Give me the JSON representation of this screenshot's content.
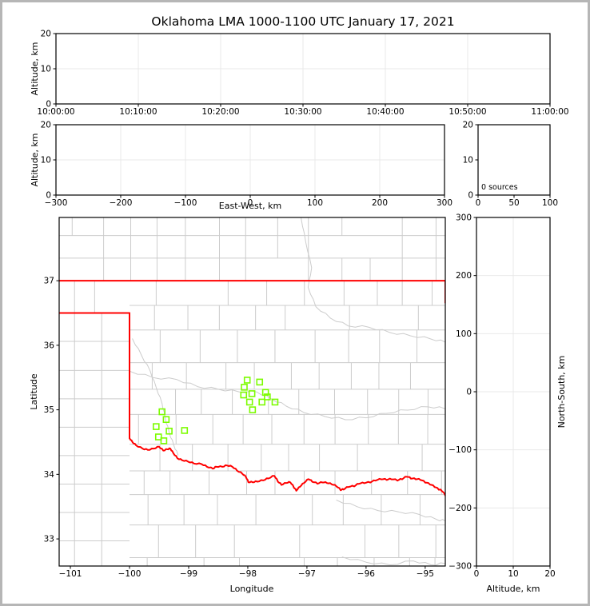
{
  "title": "Oklahoma LMA 1000-1100 UTC January 17, 2021",
  "labels": {
    "alt_km": "Altitude, km",
    "east_west": "East-West, km",
    "longitude": "Longitude",
    "latitude": "Latitude",
    "north_south": "North-South, km"
  },
  "colors": {
    "state_border": "#ff0000",
    "station_marker": "#7cfc00",
    "county_line": "#cccccc",
    "river_line": "#cccccc",
    "grid_line": "#e9e9e9",
    "axis_frame": "#000000",
    "page_border": "#b6b6b6",
    "background": "#ffffff",
    "text": "#000000"
  },
  "chart_data": [
    {
      "id": "altitude_vs_time",
      "type": "scatter",
      "ylabel": "Altitude, km",
      "xlim": [
        0,
        3600
      ],
      "ylim": [
        0,
        20
      ],
      "x_tick_values": [
        0,
        600,
        1200,
        1800,
        2400,
        3000,
        3600
      ],
      "x_tick_labels": [
        "10:00:00",
        "10:10:00",
        "10:20:00",
        "10:30:00",
        "10:40:00",
        "10:50:00",
        "11:00:00"
      ],
      "y_tick_values": [
        0,
        10,
        20
      ],
      "y_tick_labels": [
        "0",
        "10",
        "20"
      ],
      "grid_x": [
        600,
        1200,
        1800,
        2400,
        3000
      ],
      "grid_y": [
        10
      ],
      "points": []
    },
    {
      "id": "altitude_vs_east_west",
      "type": "scatter",
      "xlabel": "East-West, km",
      "ylabel": "Altitude, km",
      "xlim": [
        -300,
        300
      ],
      "ylim": [
        0,
        20
      ],
      "x_tick_values": [
        -300,
        -200,
        -100,
        0,
        100,
        200,
        300
      ],
      "x_tick_labels": [
        "−300",
        "−200",
        "−100",
        "0",
        "100",
        "200",
        "300"
      ],
      "y_tick_values": [
        0,
        10,
        20
      ],
      "y_tick_labels": [
        "0",
        "10",
        "20"
      ],
      "grid_x": [
        -200,
        -100,
        0,
        100,
        200
      ],
      "grid_y": [
        10
      ],
      "points": []
    },
    {
      "id": "source_count_histogram",
      "type": "line",
      "annotation": "0 sources",
      "xlim": [
        0,
        100
      ],
      "ylim": [
        0,
        20
      ],
      "x_tick_values": [
        0,
        50,
        100
      ],
      "x_tick_labels": [
        "0",
        "50",
        "100"
      ],
      "y_tick_values": [
        0,
        10,
        20
      ],
      "y_tick_labels": [
        "0",
        "10",
        "20"
      ],
      "grid_x": [],
      "grid_y": [],
      "points": []
    },
    {
      "id": "plan_view_map",
      "type": "scatter",
      "xlabel": "Longitude",
      "ylabel": "Latitude",
      "xlim": [
        -101.19,
        -94.66
      ],
      "ylim": [
        32.58,
        37.98
      ],
      "x_tick_values": [
        -101,
        -100,
        -99,
        -98,
        -97,
        -96,
        -95
      ],
      "x_tick_labels": [
        "−101",
        "−100",
        "−99",
        "−98",
        "−97",
        "−96",
        "−95"
      ],
      "y_tick_values": [
        33,
        34,
        35,
        36,
        37
      ],
      "y_tick_labels": [
        "33",
        "34",
        "35",
        "36",
        "37"
      ],
      "points": [],
      "stations": [
        [
          -98.01,
          35.46
        ],
        [
          -97.8,
          35.43
        ],
        [
          -98.06,
          35.35
        ],
        [
          -98.07,
          35.23
        ],
        [
          -97.93,
          35.25
        ],
        [
          -97.7,
          35.27
        ],
        [
          -97.67,
          35.2
        ],
        [
          -97.54,
          35.12
        ],
        [
          -97.76,
          35.12
        ],
        [
          -97.97,
          35.12
        ],
        [
          -97.92,
          35.0
        ],
        [
          -99.45,
          34.97
        ],
        [
          -99.38,
          34.85
        ],
        [
          -99.55,
          34.74
        ],
        [
          -99.33,
          34.67
        ],
        [
          -99.07,
          34.68
        ],
        [
          -99.51,
          34.58
        ],
        [
          -99.42,
          34.52
        ]
      ],
      "state_borders": [
        [
          [
            -101.19,
            37.0
          ],
          [
            -94.66,
            37.0
          ]
        ],
        [
          [
            -94.66,
            37.0
          ],
          [
            -94.66,
            36.66
          ]
        ],
        [
          [
            -101.19,
            36.5
          ],
          [
            -100.0,
            36.5
          ]
        ],
        [
          [
            -100.0,
            36.5
          ],
          [
            -100.0,
            34.56
          ]
        ],
        [
          [
            -100.0,
            34.56
          ],
          [
            -99.95,
            34.5
          ],
          [
            -99.89,
            34.45
          ],
          [
            -99.78,
            34.4
          ],
          [
            -99.69,
            34.38
          ],
          [
            -99.59,
            34.4
          ],
          [
            -99.5,
            34.43
          ],
          [
            -99.43,
            34.37
          ],
          [
            -99.36,
            34.39
          ],
          [
            -99.31,
            34.4
          ],
          [
            -99.26,
            34.33
          ],
          [
            -99.19,
            34.25
          ],
          [
            -99.11,
            34.22
          ],
          [
            -99.01,
            34.2
          ],
          [
            -98.91,
            34.17
          ],
          [
            -98.78,
            34.16
          ],
          [
            -98.69,
            34.12
          ],
          [
            -98.59,
            34.09
          ],
          [
            -98.53,
            34.12
          ],
          [
            -98.43,
            34.12
          ],
          [
            -98.35,
            34.14
          ],
          [
            -98.26,
            34.12
          ],
          [
            -98.18,
            34.06
          ],
          [
            -98.09,
            34.01
          ],
          [
            -98.03,
            33.96
          ],
          [
            -97.99,
            33.88
          ],
          [
            -97.92,
            33.88
          ],
          [
            -97.84,
            33.89
          ],
          [
            -97.74,
            33.91
          ],
          [
            -97.65,
            33.94
          ],
          [
            -97.55,
            33.98
          ],
          [
            -97.49,
            33.89
          ],
          [
            -97.43,
            33.84
          ],
          [
            -97.35,
            33.87
          ],
          [
            -97.28,
            33.88
          ],
          [
            -97.22,
            33.8
          ],
          [
            -97.18,
            33.75
          ],
          [
            -97.12,
            33.81
          ],
          [
            -97.05,
            33.87
          ],
          [
            -96.97,
            33.93
          ],
          [
            -96.91,
            33.89
          ],
          [
            -96.82,
            33.86
          ],
          [
            -96.74,
            33.88
          ],
          [
            -96.66,
            33.87
          ],
          [
            -96.58,
            33.85
          ],
          [
            -96.5,
            33.82
          ],
          [
            -96.43,
            33.76
          ],
          [
            -96.38,
            33.77
          ],
          [
            -96.3,
            33.81
          ],
          [
            -96.2,
            33.82
          ],
          [
            -96.12,
            33.86
          ],
          [
            -96.03,
            33.87
          ],
          [
            -95.93,
            33.88
          ],
          [
            -95.84,
            33.91
          ],
          [
            -95.74,
            33.93
          ],
          [
            -95.65,
            33.92
          ],
          [
            -95.57,
            33.93
          ],
          [
            -95.47,
            33.91
          ],
          [
            -95.39,
            33.93
          ],
          [
            -95.31,
            33.97
          ],
          [
            -95.24,
            33.94
          ],
          [
            -95.16,
            33.93
          ],
          [
            -95.08,
            33.92
          ],
          [
            -95.0,
            33.88
          ],
          [
            -94.92,
            33.85
          ],
          [
            -94.84,
            33.81
          ],
          [
            -94.77,
            33.77
          ],
          [
            -94.72,
            33.75
          ],
          [
            -94.66,
            33.68
          ]
        ]
      ],
      "rivers": [
        [
          [
            -97.1,
            37.98
          ],
          [
            -97.02,
            37.6
          ],
          [
            -96.92,
            37.2
          ],
          [
            -96.98,
            36.9
          ],
          [
            -96.85,
            36.6
          ],
          [
            -96.6,
            36.42
          ],
          [
            -96.3,
            36.3
          ],
          [
            -95.95,
            36.28
          ],
          [
            -95.6,
            36.2
          ],
          [
            -95.25,
            36.15
          ],
          [
            -94.9,
            36.1
          ],
          [
            -94.66,
            36.05
          ]
        ],
        [
          [
            -100.0,
            35.6
          ],
          [
            -99.6,
            35.5
          ],
          [
            -99.2,
            35.47
          ],
          [
            -98.85,
            35.36
          ],
          [
            -98.5,
            35.32
          ],
          [
            -98.15,
            35.28
          ],
          [
            -97.85,
            35.28
          ],
          [
            -97.6,
            35.17
          ],
          [
            -97.35,
            35.06
          ],
          [
            -97.05,
            34.96
          ],
          [
            -96.7,
            34.9
          ],
          [
            -96.35,
            34.85
          ],
          [
            -96.0,
            34.88
          ],
          [
            -95.65,
            34.95
          ],
          [
            -95.3,
            35.0
          ],
          [
            -94.95,
            35.05
          ],
          [
            -94.66,
            35.02
          ]
        ],
        [
          [
            -99.95,
            36.1
          ],
          [
            -99.8,
            35.85
          ],
          [
            -99.65,
            35.6
          ],
          [
            -99.55,
            35.35
          ],
          [
            -99.45,
            35.1
          ],
          [
            -99.4,
            34.88
          ],
          [
            -99.33,
            34.65
          ],
          [
            -99.25,
            34.45
          ],
          [
            -99.18,
            34.3
          ]
        ],
        [
          [
            -96.5,
            33.6
          ],
          [
            -96.15,
            33.5
          ],
          [
            -95.8,
            33.44
          ],
          [
            -95.45,
            33.42
          ],
          [
            -95.1,
            33.38
          ],
          [
            -94.8,
            33.3
          ],
          [
            -94.66,
            33.28
          ]
        ],
        [
          [
            -96.4,
            32.72
          ],
          [
            -96.0,
            32.64
          ],
          [
            -95.6,
            32.6
          ],
          [
            -95.2,
            32.66
          ],
          [
            -94.9,
            32.6
          ],
          [
            -94.66,
            32.62
          ]
        ]
      ]
    },
    {
      "id": "north_south_vs_altitude",
      "type": "scatter",
      "xlabel": "Altitude, km",
      "ylabel": "North-South, km",
      "xlim": [
        0,
        20
      ],
      "ylim": [
        -300,
        300
      ],
      "x_tick_values": [
        0,
        10,
        20
      ],
      "x_tick_labels": [
        "0",
        "10",
        "20"
      ],
      "y_tick_values": [
        -300,
        -200,
        -100,
        0,
        100,
        200,
        300
      ],
      "y_tick_labels": [
        "−300",
        "−200",
        "−100",
        "0",
        "100",
        "200",
        "300"
      ],
      "grid_x": [
        10
      ],
      "grid_y": [
        -200,
        -100,
        0,
        100,
        200
      ],
      "points": []
    }
  ]
}
